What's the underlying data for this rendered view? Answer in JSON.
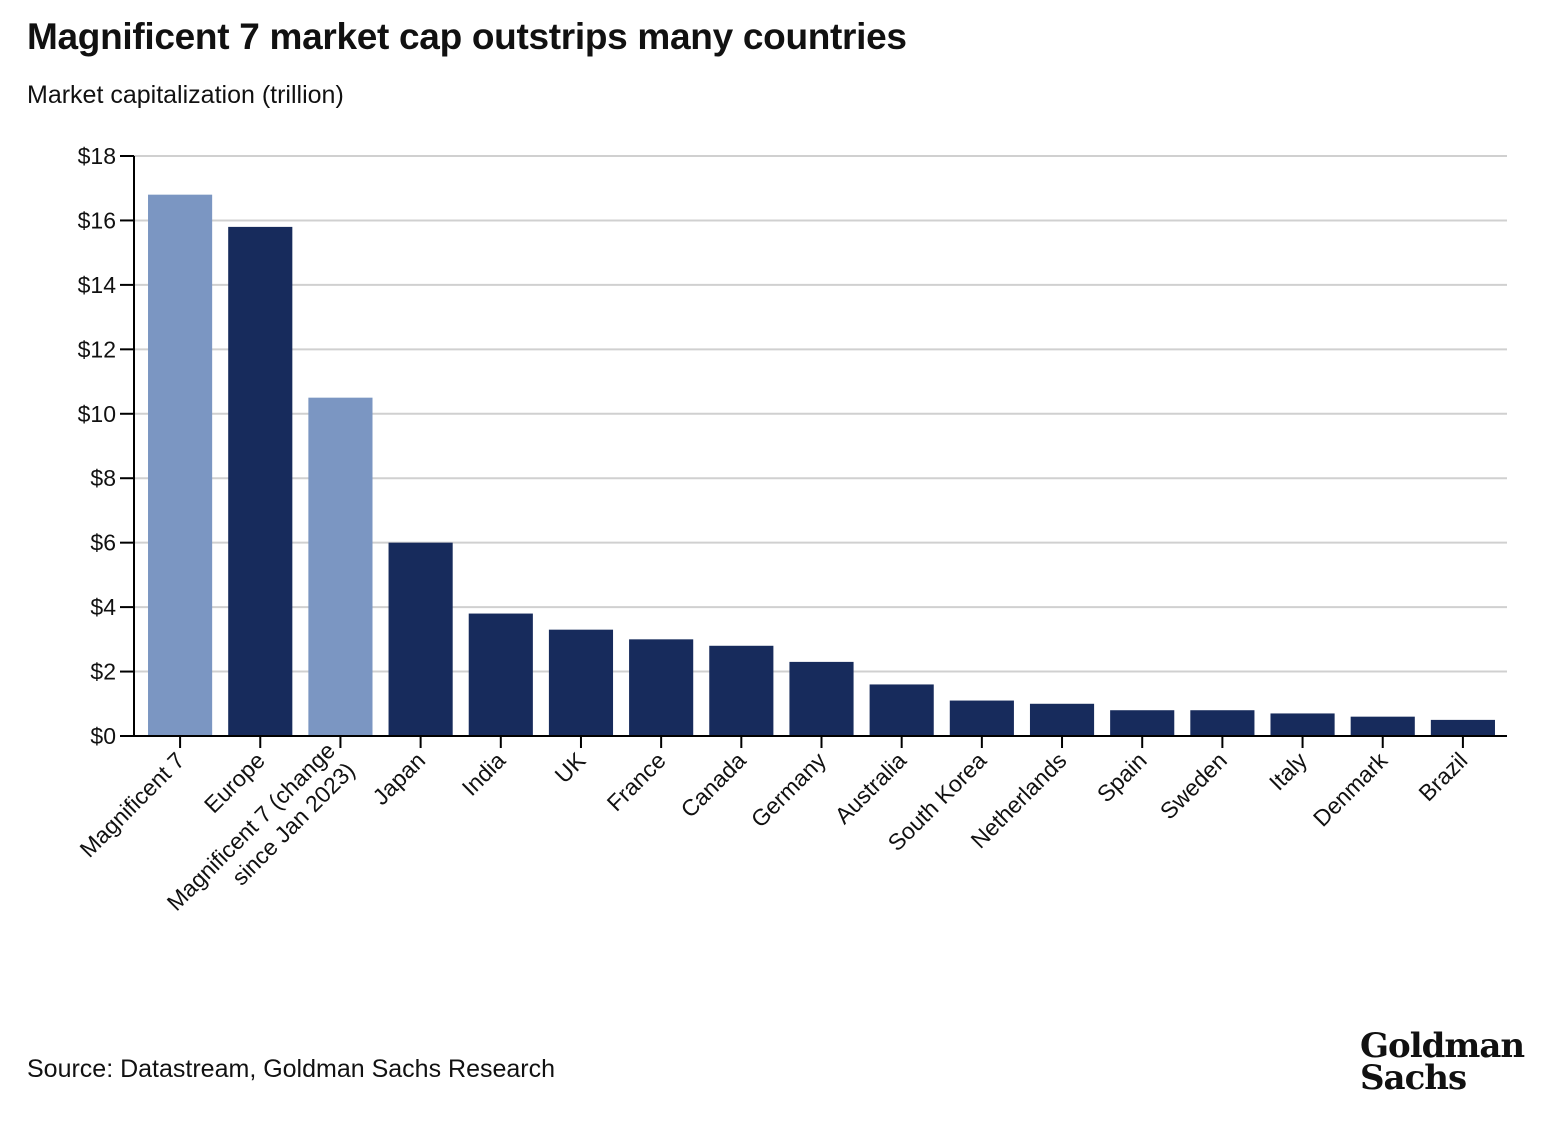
{
  "chart_data": {
    "type": "bar",
    "title": "Magnificent 7 market cap outstrips many countries",
    "subtitle": "Market capitalization (trillion)",
    "xlabel": "",
    "ylabel": "Market capitalization (trillion)",
    "ylim": [
      0,
      18
    ],
    "yticks": [
      0,
      2,
      4,
      6,
      8,
      10,
      12,
      14,
      16,
      18
    ],
    "ytick_labels": [
      "$0",
      "$2",
      "$4",
      "$6",
      "$8",
      "$10",
      "$12",
      "$14",
      "$16",
      "$18"
    ],
    "grid": true,
    "categories": [
      "Magnificent 7",
      "Europe",
      "Magnificent 7 (change since Jan 2023)",
      "Japan",
      "India",
      "UK",
      "France",
      "Canada",
      "Germany",
      "Australia",
      "South Korea",
      "Netherlands",
      "Spain",
      "Sweden",
      "Italy",
      "Denmark",
      "Brazil"
    ],
    "category_label_lines": [
      [
        "Magnificent 7"
      ],
      [
        "Europe"
      ],
      [
        "Magnificent 7 (change",
        "since Jan 2023)"
      ],
      [
        "Japan"
      ],
      [
        "India"
      ],
      [
        "UK"
      ],
      [
        "France"
      ],
      [
        "Canada"
      ],
      [
        "Germany"
      ],
      [
        "Australia"
      ],
      [
        "South Korea"
      ],
      [
        "Netherlands"
      ],
      [
        "Spain"
      ],
      [
        "Sweden"
      ],
      [
        "Italy"
      ],
      [
        "Denmark"
      ],
      [
        "Brazil"
      ]
    ],
    "values": [
      16.8,
      15.8,
      10.5,
      6.0,
      3.8,
      3.3,
      3.0,
      2.8,
      2.3,
      1.6,
      1.1,
      1.0,
      0.8,
      0.8,
      0.7,
      0.6,
      0.5
    ],
    "bar_colors": [
      "#7b96c2",
      "#172b5c",
      "#7b96c2",
      "#172b5c",
      "#172b5c",
      "#172b5c",
      "#172b5c",
      "#172b5c",
      "#172b5c",
      "#172b5c",
      "#172b5c",
      "#172b5c",
      "#172b5c",
      "#172b5c",
      "#172b5c",
      "#172b5c",
      "#172b5c"
    ],
    "colors": {
      "highlight": "#7b96c2",
      "default": "#172b5c",
      "grid": "#d0d0d0",
      "axis": "#000000"
    }
  },
  "source": "Source: Datastream, Goldman Sachs Research",
  "logo": {
    "line1": "Goldman",
    "line2": "Sachs"
  }
}
